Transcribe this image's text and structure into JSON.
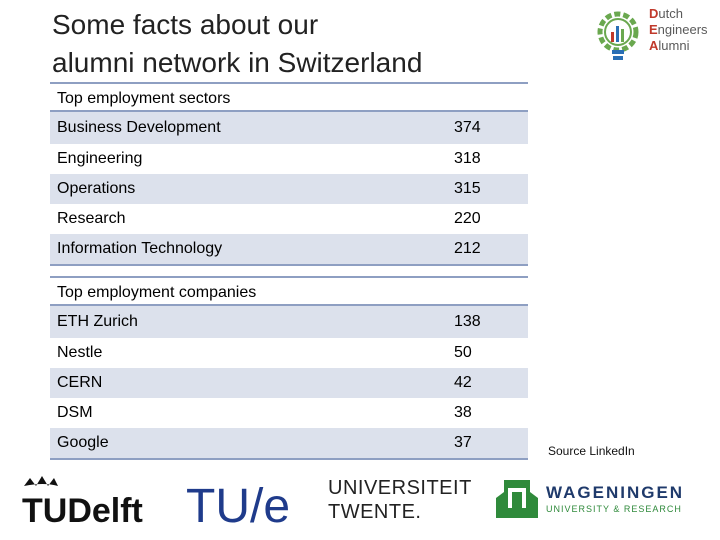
{
  "title_line1": "Some facts about our",
  "title_line2": "alumni network in Switzerland",
  "sectors": {
    "heading": "Top employment sectors",
    "rows": [
      {
        "name": "Business Development",
        "count": "374"
      },
      {
        "name": "Engineering",
        "count": "318"
      },
      {
        "name": "Operations",
        "count": "315"
      },
      {
        "name": "Research",
        "count": "220"
      },
      {
        "name": "Information Technology",
        "count": "212"
      }
    ]
  },
  "companies": {
    "heading": "Top employment companies",
    "rows": [
      {
        "name": "ETH Zurich",
        "count": "138"
      },
      {
        "name": "Nestle",
        "count": "50"
      },
      {
        "name": "CERN",
        "count": "42"
      },
      {
        "name": "DSM",
        "count": "38"
      },
      {
        "name": "Google",
        "count": "37"
      }
    ]
  },
  "source": "Source LinkedIn",
  "logos": {
    "dea": {
      "line1_cap": "D",
      "line1": "utch",
      "line2_cap": "E",
      "line2": "ngineers",
      "line3_cap": "A",
      "line3": "lumni"
    },
    "tudelft": "TUDelft",
    "tue": "TU/e",
    "utwente_line1": "UNIVERSITEIT",
    "utwente_line2": "TWENTE.",
    "wur_line1": "WAGENINGEN",
    "wur_line2": "UNIVERSITY & RESEARCH"
  },
  "colors": {
    "rule": "#8e9fc2",
    "row_shade": "#dce1ec",
    "dea_green": "#6aa84f",
    "dea_red": "#c0392b",
    "dea_blue": "#2a6fb5",
    "tue_blue": "#1f3b8b",
    "tue_red": "#c8102e",
    "wur_green": "#2f8a3b",
    "wur_blue": "#1f3a6b"
  }
}
